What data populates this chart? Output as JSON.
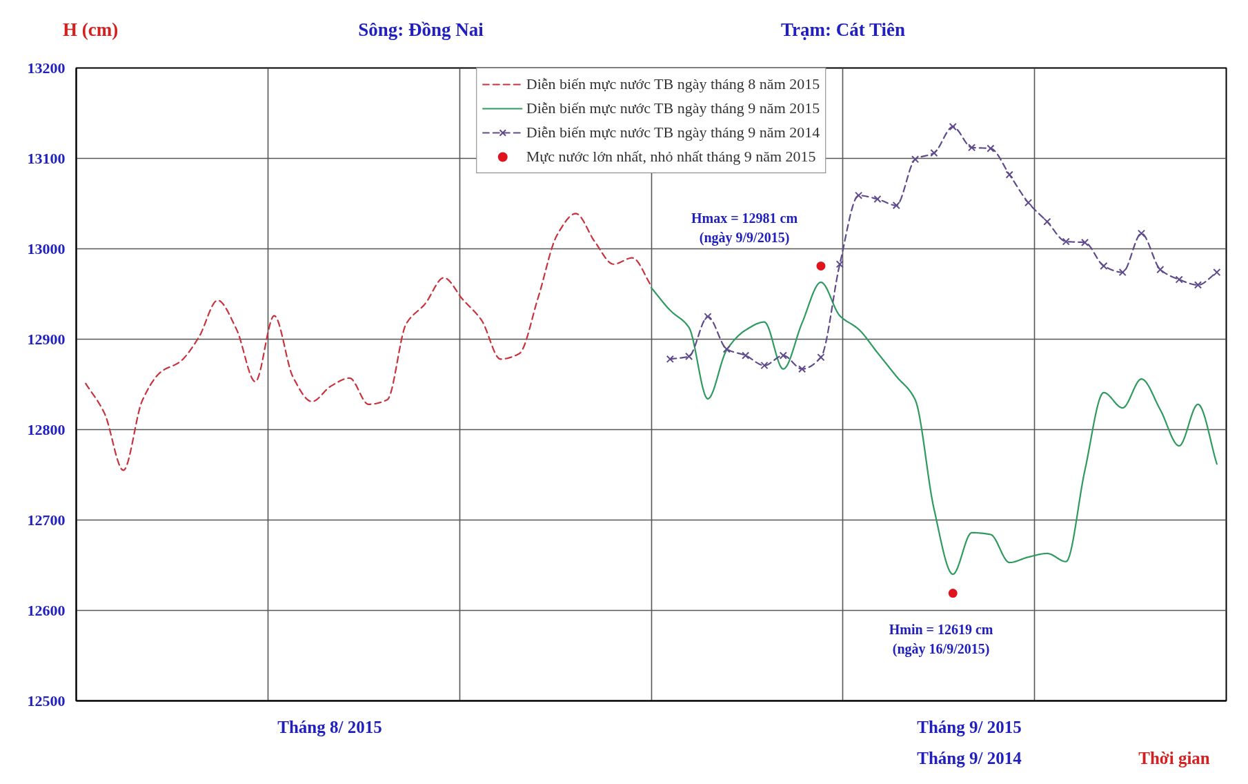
{
  "chart_data": {
    "type": "line",
    "title": "Sông: Đồng Nai",
    "subtitle": "Trạm: Cát Tiên",
    "xlabel": "Thời gian",
    "ylabel": "H (cm)",
    "categories": [
      null,
      null,
      null,
      null,
      null,
      null,
      null,
      null,
      null,
      null,
      null,
      null,
      null,
      null,
      null,
      null,
      null,
      null,
      null,
      null,
      null,
      null,
      null,
      null,
      null,
      null,
      null,
      null,
      null,
      null,
      null,
      null,
      null,
      null,
      null,
      null,
      null,
      null,
      null,
      null,
      null,
      null,
      null,
      null,
      null,
      null,
      null,
      null,
      null,
      null,
      null,
      null,
      null,
      null,
      null,
      null,
      null,
      null,
      null,
      null,
      null
    ],
    "ylim": [
      12500,
      13200
    ],
    "yticks": [
      12500,
      12600,
      12700,
      12800,
      12900,
      13000,
      13100,
      13200
    ],
    "grid": true,
    "legend": "top",
    "tick_labels": "y",
    "series": [
      {
        "name": "Diễn biến mực nước TB ngày tháng 8 năm 2015",
        "color": "#c8323c",
        "line_style": "dashed",
        "marker": "none",
        "values": [
          12851,
          12818,
          12755,
          12832,
          12864,
          12875,
          12902,
          12943,
          12911,
          12853,
          12926,
          12858,
          12831,
          12848,
          12857,
          12828,
          12833,
          12917,
          12939,
          12968,
          12944,
          12921,
          12878,
          12884,
          12946,
          13015,
          13039,
          13008,
          12983,
          12990,
          12959,
          null,
          null,
          null,
          null,
          null,
          null,
          null,
          null,
          null,
          null,
          null,
          null,
          null,
          null,
          null,
          null,
          null,
          null,
          null,
          null,
          null,
          null,
          null,
          null,
          null,
          null,
          null,
          null,
          null,
          null
        ]
      },
      {
        "name": "Diễn biến mực nước TB ngày tháng 9 năm 2015",
        "color": "#2e9a5e",
        "line_style": "solid",
        "marker": "none",
        "values": [
          null,
          null,
          null,
          null,
          null,
          null,
          null,
          null,
          null,
          null,
          null,
          null,
          null,
          null,
          null,
          null,
          null,
          null,
          null,
          null,
          null,
          null,
          null,
          null,
          null,
          null,
          null,
          null,
          null,
          null,
          12957,
          12932,
          12913,
          12834,
          12888,
          12910,
          12919,
          12867,
          12918,
          12963,
          12926,
          12911,
          12885,
          12859,
          12833,
          12712,
          12640,
          12686,
          12684,
          12653,
          12659,
          12663,
          12654,
          12755,
          12841,
          12824,
          12856,
          12822,
          12782,
          12828,
          12762
        ]
      },
      {
        "name": "Diễn biến mực nước TB ngày tháng 9 năm 2014",
        "color": "#5f4b8b",
        "line_style": "dashed",
        "marker": "cross",
        "values": [
          null,
          null,
          null,
          null,
          null,
          null,
          null,
          null,
          null,
          null,
          null,
          null,
          null,
          null,
          null,
          null,
          null,
          null,
          null,
          null,
          null,
          null,
          null,
          null,
          null,
          null,
          null,
          null,
          null,
          null,
          null,
          12878,
          12881,
          12925,
          12889,
          12882,
          12871,
          12882,
          12867,
          12880,
          12983,
          13059,
          13055,
          13048,
          13099,
          13106,
          13135,
          13112,
          13111,
          13082,
          13051,
          13030,
          13008,
          13007,
          12981,
          12974,
          13017,
          12977,
          12966,
          12960,
          12974
        ]
      },
      {
        "name": "Mực nước lớn nhất, nhỏ nhất tháng 9 năm 2015",
        "type": "scatter",
        "color": "#e0141e",
        "marker": "circle",
        "values": [
          null,
          null,
          null,
          null,
          null,
          null,
          null,
          null,
          null,
          null,
          null,
          null,
          null,
          null,
          null,
          null,
          null,
          null,
          null,
          null,
          null,
          null,
          null,
          null,
          null,
          null,
          null,
          null,
          null,
          null,
          null,
          null,
          null,
          null,
          null,
          null,
          null,
          null,
          null,
          12981,
          null,
          null,
          null,
          null,
          null,
          null,
          12619,
          null,
          null,
          null,
          null,
          null,
          null,
          null,
          null,
          null,
          null,
          null,
          null,
          null,
          null
        ]
      }
    ],
    "annotations": [
      "Hmax = 12981 cm\n(ngày 9/9/2015)",
      "Hmin = 12619 cm\n(ngày 16/9/2015)",
      "Tháng 8/ 2015",
      "Tháng 9/ 2015",
      "Tháng 9/ 2014"
    ]
  }
}
